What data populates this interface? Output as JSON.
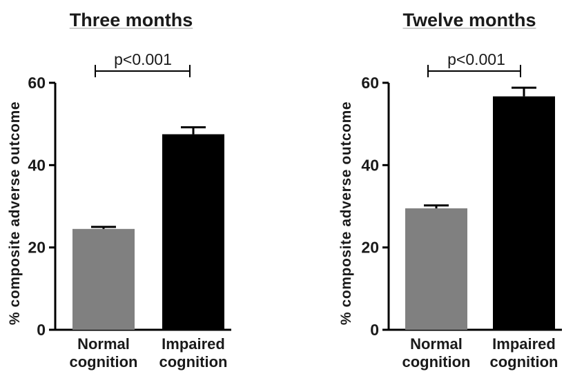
{
  "chart_data": [
    {
      "type": "bar",
      "title": "Three months",
      "ylabel": "% composite adverse outcome",
      "categories": [
        "Normal cognition",
        "Impaired cognition"
      ],
      "category_lines": [
        [
          "Normal",
          "cognition"
        ],
        [
          "Impaired",
          "cognition"
        ]
      ],
      "values": [
        24.5,
        47.5
      ],
      "error_upper": [
        25.0,
        49.2
      ],
      "colors": [
        "#808080",
        "#000000"
      ],
      "ylim": [
        0,
        60
      ],
      "yticks": [
        0,
        20,
        40,
        60
      ],
      "annotation": "p<0.001",
      "grid": false
    },
    {
      "type": "bar",
      "title": "Twelve months",
      "ylabel": "% composite adverse outcome",
      "categories": [
        "Normal cognition",
        "Impaired cognition"
      ],
      "category_lines": [
        [
          "Normal",
          "cognition"
        ],
        [
          "Impaired",
          "cognition"
        ]
      ],
      "values": [
        29.5,
        56.7
      ],
      "error_upper": [
        30.2,
        58.8
      ],
      "colors": [
        "#808080",
        "#000000"
      ],
      "ylim": [
        0,
        60
      ],
      "yticks": [
        0,
        20,
        40,
        60
      ],
      "annotation": "p<0.001",
      "grid": false
    }
  ]
}
